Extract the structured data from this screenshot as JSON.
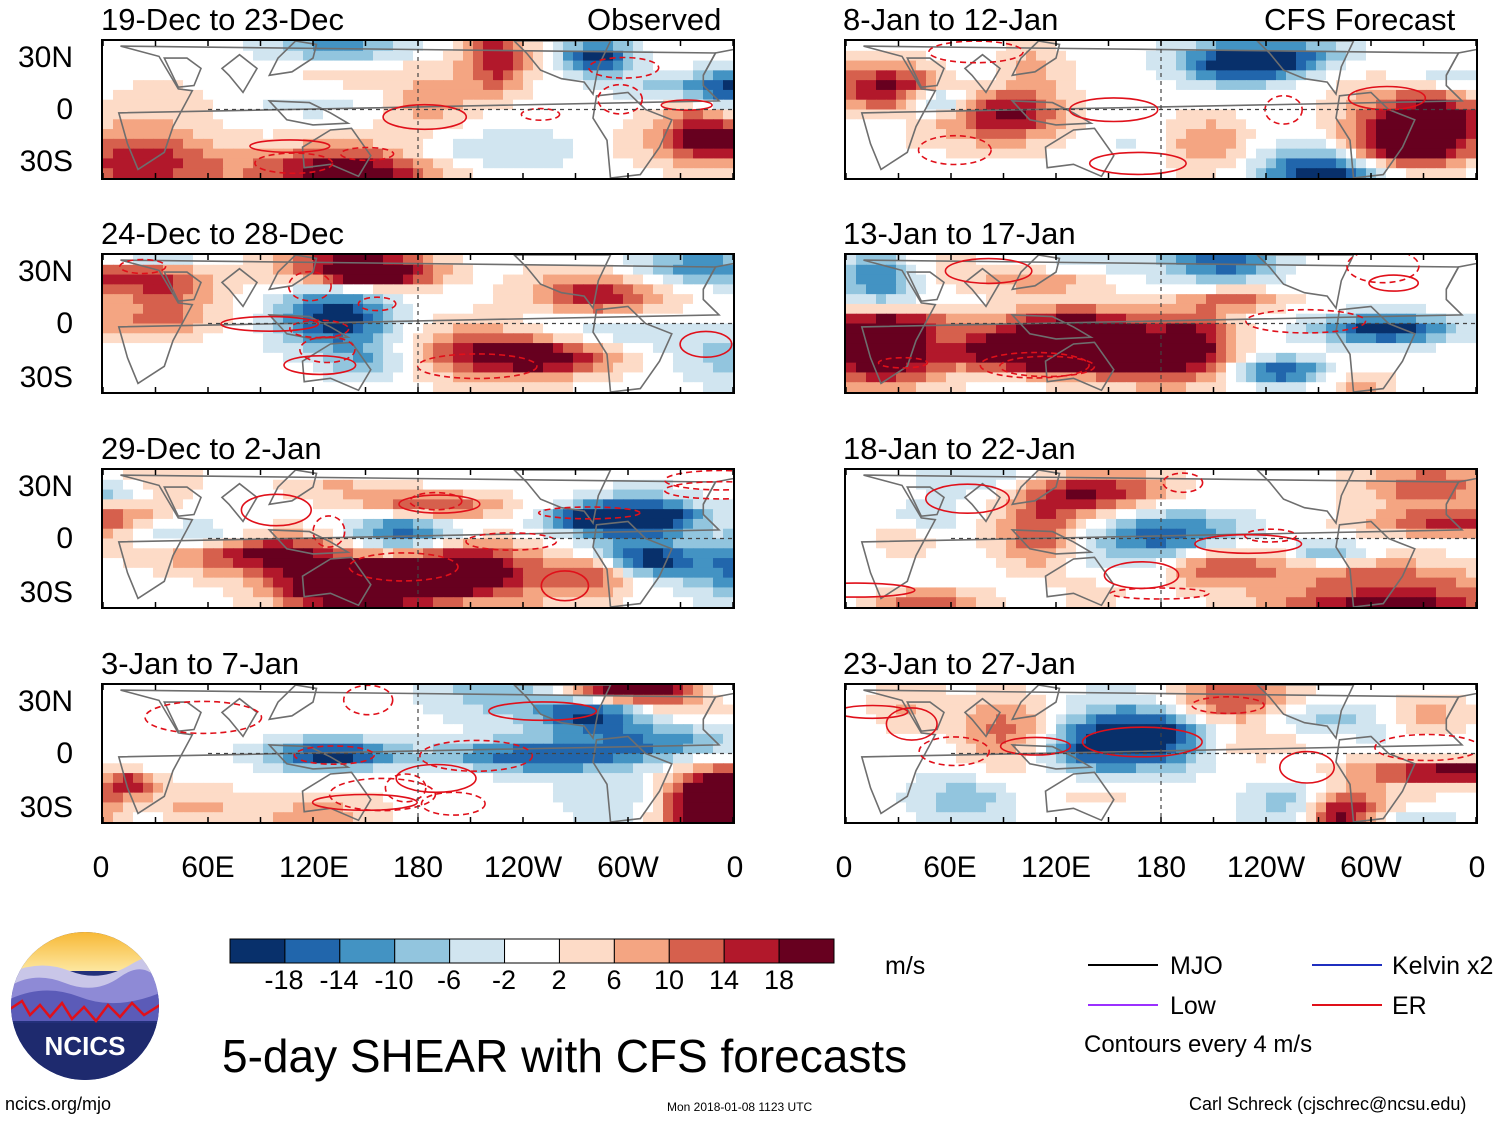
{
  "title": "5-day SHEAR with CFS forecasts",
  "chart_data": {
    "type": "heatmap",
    "variable": "SHEAR",
    "units": "m/s",
    "x_ticks": [
      "0",
      "60E",
      "120E",
      "180",
      "120W",
      "60W",
      "0"
    ],
    "y_ticks": [
      "30N",
      "0",
      "30S"
    ],
    "colorbar": {
      "ticks": [
        "-18",
        "-14",
        "-10",
        "-6",
        "-2",
        "2",
        "6",
        "10",
        "14",
        "18"
      ],
      "colors": [
        "#08306b",
        "#2166ac",
        "#4393c3",
        "#92c5de",
        "#d1e5f0",
        "#ffffff",
        "#fddbc7",
        "#f4a582",
        "#d6604d",
        "#b2182b",
        "#67001f"
      ]
    },
    "panels": [
      {
        "label": "19-Dec to 23-Dec",
        "tag": "Observed",
        "seed": 11
      },
      {
        "label": "24-Dec to 28-Dec",
        "tag": "",
        "seed": 23
      },
      {
        "label": "29-Dec to 2-Jan",
        "tag": "",
        "seed": 37
      },
      {
        "label": "3-Jan to 7-Jan",
        "tag": "",
        "seed": 41
      },
      {
        "label": "8-Jan to 12-Jan",
        "tag": "CFS Forecast",
        "seed": 53
      },
      {
        "label": "13-Jan to 17-Jan",
        "tag": "",
        "seed": 67
      },
      {
        "label": "18-Jan to 22-Jan",
        "tag": "",
        "seed": 71
      },
      {
        "label": "23-Jan to 27-Jan",
        "tag": "",
        "seed": 89
      }
    ],
    "legend": [
      {
        "name": "MJO",
        "color": "#000000"
      },
      {
        "name": "Kelvin x2",
        "color": "#1f2fbf"
      },
      {
        "name": "Low",
        "color": "#9b30ff"
      },
      {
        "name": "ER",
        "color": "#e0101a"
      }
    ],
    "contour_note": "Contours every 4 m/s"
  },
  "logo": {
    "text": "NCICS"
  },
  "footer": {
    "url": "ncics.org/mjo",
    "timestamp": "Mon 2018-01-08 1123 UTC",
    "author": "Carl Schreck (cjschrec@ncsu.edu)"
  }
}
